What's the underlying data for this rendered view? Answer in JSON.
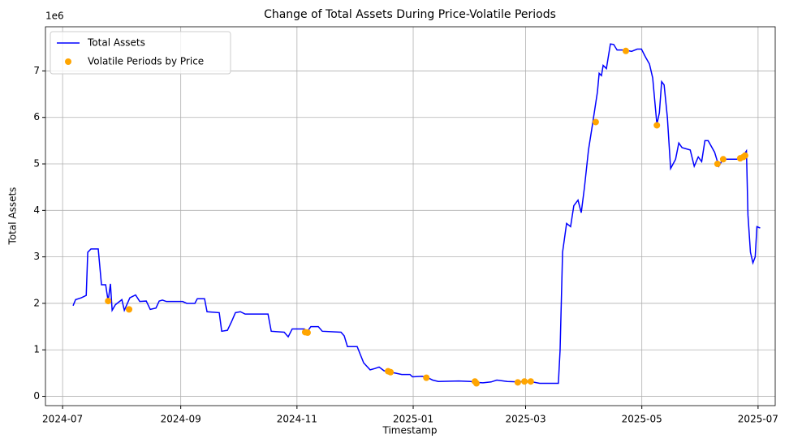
{
  "chart_data": {
    "type": "line",
    "title": "Change of Total Assets During Price-Volatile Periods",
    "xlabel": "Timestamp",
    "ylabel": "Total Assets",
    "y_offset_text": "1e6",
    "xlim": [
      19896,
      20279
    ],
    "ylim": [
      -200000,
      7950000
    ],
    "xticks": [
      {
        "value": 19905,
        "label": "2024-07"
      },
      {
        "value": 19967,
        "label": "2024-09"
      },
      {
        "value": 20028,
        "label": "2024-11"
      },
      {
        "value": 20089,
        "label": "2025-01"
      },
      {
        "value": 20148,
        "label": "2025-03"
      },
      {
        "value": 20209,
        "label": "2025-05"
      },
      {
        "value": 20270,
        "label": "2025-07"
      }
    ],
    "yticks": [
      {
        "value": 0,
        "label": "0"
      },
      {
        "value": 1000000,
        "label": "1"
      },
      {
        "value": 2000000,
        "label": "2"
      },
      {
        "value": 3000000,
        "label": "3"
      },
      {
        "value": 4000000,
        "label": "4"
      },
      {
        "value": 5000000,
        "label": "5"
      },
      {
        "value": 6000000,
        "label": "6"
      },
      {
        "value": 7000000,
        "label": "7"
      }
    ],
    "grid": true,
    "legend": "upper left",
    "series": [
      {
        "name": "Total Assets",
        "type": "line",
        "color": "#0000ff",
        "x": [
          19910.5,
          19911.8,
          19914.8,
          19917.4,
          19918.2,
          19919.9,
          19923.7,
          19925.4,
          19927.6,
          19928.9,
          19930.1,
          19931.0,
          19932.7,
          19936.1,
          19937.4,
          19940.3,
          19943.3,
          19945.5,
          19948.9,
          19951.0,
          19954.0,
          19955.7,
          19957.4,
          19959.5,
          19968.0,
          19970.2,
          19974.4,
          19975.7,
          19979.5,
          19980.8,
          19987.2,
          19988.5,
          19991.5,
          19993.6,
          19995.7,
          19998.3,
          20000.8,
          20012.8,
          20014.5,
          20021.3,
          20023.4,
          20025.5,
          20031.9,
          20033.2,
          20035.3,
          20039.2,
          20041.3,
          20051.1,
          20052.8,
          20054.5,
          20059.6,
          20063.0,
          20066.4,
          20069.0,
          20071.1,
          20073.7,
          20076.6,
          20079.6,
          20083.0,
          20087.3,
          20088.6,
          20093.7,
          20096.7,
          20099.2,
          20102.2,
          20112.9,
          20119.2,
          20122.2,
          20125.6,
          20129.9,
          20132.9,
          20138.4,
          20144.8,
          20149.0,
          20155.4,
          20165.2,
          20166.1,
          20167.4,
          20169.5,
          20171.6,
          20173.3,
          20175.5,
          20177.2,
          20178.9,
          20181.0,
          20183.1,
          20185.7,
          20186.6,
          20187.8,
          20188.7,
          20190.4,
          20192.5,
          20194.2,
          20196.0,
          20200.2,
          20203.6,
          20206.6,
          20208.8,
          20210.9,
          20213.0,
          20214.7,
          20216.9,
          20218.2,
          20219.4,
          20220.7,
          20222.4,
          20224.1,
          20226.7,
          20228.4,
          20230.1,
          20234.4,
          20236.5,
          20238.6,
          20240.4,
          20242.1,
          20243.8,
          20247.2,
          20249.4,
          20251.5,
          20260.0,
          20262.6,
          20263.9,
          20264.7,
          20266.0,
          20267.3,
          20268.5,
          20269.4,
          20271.1
        ],
        "values": [
          1950000,
          2080000,
          2120000,
          2170000,
          3100000,
          3170000,
          3170000,
          2400000,
          2400000,
          2050000,
          2420000,
          1850000,
          1970000,
          2080000,
          1850000,
          2120000,
          2180000,
          2040000,
          2050000,
          1870000,
          1900000,
          2050000,
          2070000,
          2040000,
          2040000,
          2000000,
          2000000,
          2100000,
          2100000,
          1820000,
          1800000,
          1400000,
          1420000,
          1600000,
          1800000,
          1820000,
          1770000,
          1770000,
          1400000,
          1380000,
          1280000,
          1450000,
          1450000,
          1380000,
          1500000,
          1500000,
          1400000,
          1380000,
          1300000,
          1070000,
          1070000,
          720000,
          570000,
          600000,
          630000,
          550000,
          520000,
          500000,
          470000,
          470000,
          420000,
          430000,
          400000,
          350000,
          320000,
          330000,
          320000,
          300000,
          290000,
          310000,
          350000,
          320000,
          310000,
          330000,
          280000,
          280000,
          1000000,
          3100000,
          3720000,
          3650000,
          4100000,
          4220000,
          3950000,
          4500000,
          5300000,
          5850000,
          6550000,
          6950000,
          6900000,
          7120000,
          7050000,
          7580000,
          7570000,
          7450000,
          7450000,
          7420000,
          7470000,
          7470000,
          7300000,
          7150000,
          6850000,
          5850000,
          6100000,
          6770000,
          6700000,
          6000000,
          4900000,
          5100000,
          5450000,
          5350000,
          5300000,
          4950000,
          5150000,
          5050000,
          5500000,
          5500000,
          5250000,
          4950000,
          5100000,
          5100000,
          5200000,
          5280000,
          3900000,
          3100000,
          2870000,
          3000000,
          3650000,
          3620000
        ]
      },
      {
        "name": "Volatile Periods by Price",
        "type": "scatter",
        "color": "#ffa500",
        "x": [
          19928.9,
          19939.9,
          20032.3,
          20033.6,
          20075.8,
          20077.1,
          20095.9,
          20121.4,
          20122.2,
          20143.9,
          20147.4,
          20150.7,
          20184.8,
          20200.6,
          20216.9,
          20248.7,
          20251.7,
          20260.6,
          20262.3,
          20263.2
        ],
        "values": [
          2050000,
          1870000,
          1380000,
          1370000,
          540000,
          520000,
          400000,
          320000,
          280000,
          300000,
          320000,
          320000,
          5900000,
          7430000,
          5830000,
          5000000,
          5100000,
          5120000,
          5150000,
          5180000
        ]
      }
    ]
  }
}
